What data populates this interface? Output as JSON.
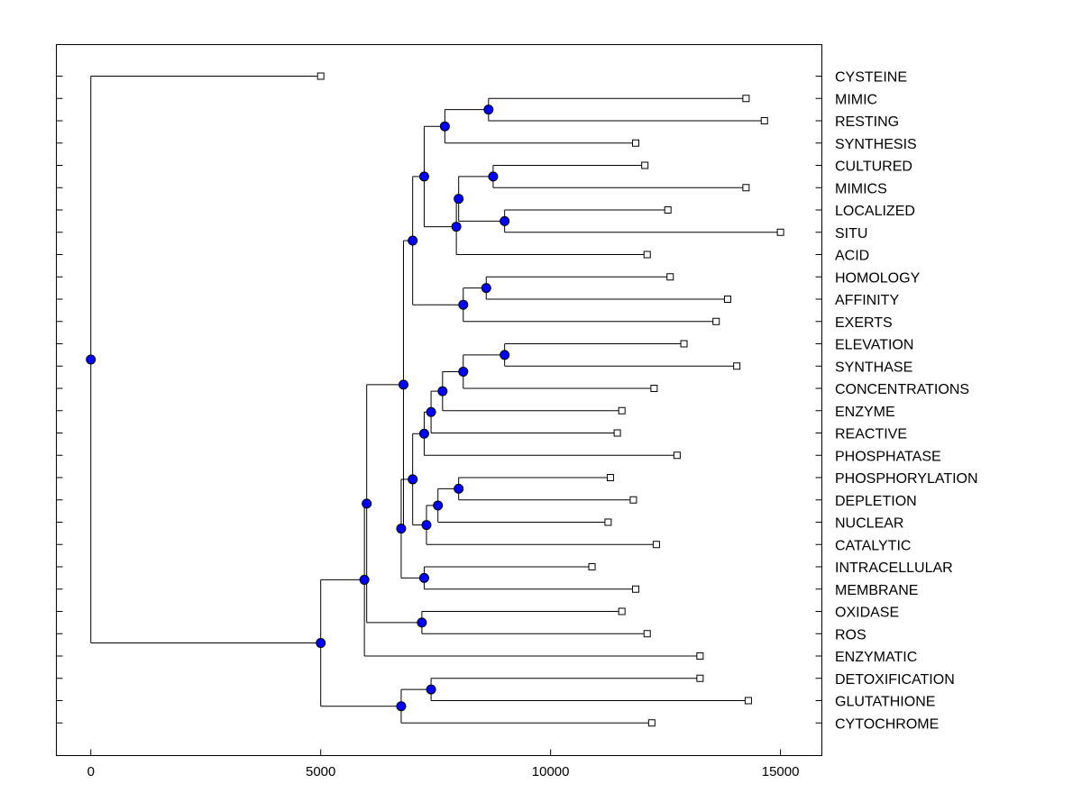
{
  "chart_data": {
    "type": "dendrogram",
    "orientation": "horizontal",
    "xlim": [
      -750,
      15900
    ],
    "xticks": [
      "0",
      "5000",
      "10000",
      "15000"
    ],
    "xtick_values": [
      0,
      5000,
      10000,
      15000
    ],
    "leaves": [
      {
        "label": "CYSTEINE",
        "x": 5000
      },
      {
        "label": "MIMIC",
        "x": 14250
      },
      {
        "label": "RESTING",
        "x": 14650
      },
      {
        "label": "SYNTHESIS",
        "x": 11850
      },
      {
        "label": "CULTURED",
        "x": 12050
      },
      {
        "label": "MIMICS",
        "x": 14250
      },
      {
        "label": "LOCALIZED",
        "x": 12550
      },
      {
        "label": "SITU",
        "x": 15000
      },
      {
        "label": "ACID",
        "x": 12100
      },
      {
        "label": "HOMOLOGY",
        "x": 12600
      },
      {
        "label": "AFFINITY",
        "x": 13850
      },
      {
        "label": "EXERTS",
        "x": 13600
      },
      {
        "label": "ELEVATION",
        "x": 12900
      },
      {
        "label": "SYNTHASE",
        "x": 14050
      },
      {
        "label": "CONCENTRATIONS",
        "x": 12250
      },
      {
        "label": "ENZYME",
        "x": 11550
      },
      {
        "label": "REACTIVE",
        "x": 11450
      },
      {
        "label": "PHOSPHATASE",
        "x": 12750
      },
      {
        "label": "PHOSPHORYLATION",
        "x": 11300
      },
      {
        "label": "DEPLETION",
        "x": 11800
      },
      {
        "label": "NUCLEAR",
        "x": 11250
      },
      {
        "label": "CATALYTIC",
        "x": 12300
      },
      {
        "label": "INTRACELLULAR",
        "x": 10900
      },
      {
        "label": "MEMBRANE",
        "x": 11850
      },
      {
        "label": "OXIDASE",
        "x": 11550
      },
      {
        "label": "ROS",
        "x": 12100
      },
      {
        "label": "ENZYMATIC",
        "x": 13250
      },
      {
        "label": "DETOXIFICATION",
        "x": 13250
      },
      {
        "label": "GLUTATHIONE",
        "x": 14300
      },
      {
        "label": "CYTOCHROME",
        "x": 12200
      }
    ],
    "merges": [
      {
        "id": "n1",
        "x": 8650,
        "children": [
          "MIMIC",
          "RESTING"
        ]
      },
      {
        "id": "n2",
        "x": 7700,
        "children": [
          "n1",
          "SYNTHESIS"
        ]
      },
      {
        "id": "n3",
        "x": 8750,
        "children": [
          "CULTURED",
          "MIMICS"
        ]
      },
      {
        "id": "n4",
        "x": 9000,
        "children": [
          "LOCALIZED",
          "SITU"
        ]
      },
      {
        "id": "n5",
        "x": 8000,
        "children": [
          "n3",
          "n4"
        ]
      },
      {
        "id": "n6",
        "x": 7950,
        "children": [
          "n5",
          "ACID"
        ]
      },
      {
        "id": "n7",
        "x": 7250,
        "children": [
          "n2",
          "n6"
        ]
      },
      {
        "id": "n8",
        "x": 8600,
        "children": [
          "HOMOLOGY",
          "AFFINITY"
        ]
      },
      {
        "id": "n9",
        "x": 8100,
        "children": [
          "n8",
          "EXERTS"
        ]
      },
      {
        "id": "n10",
        "x": 7000,
        "children": [
          "n7",
          "n9"
        ]
      },
      {
        "id": "n11",
        "x": 9000,
        "children": [
          "ELEVATION",
          "SYNTHASE"
        ]
      },
      {
        "id": "n12",
        "x": 8100,
        "children": [
          "n11",
          "CONCENTRATIONS"
        ]
      },
      {
        "id": "n13",
        "x": 7650,
        "children": [
          "n12",
          "ENZYME"
        ]
      },
      {
        "id": "n14",
        "x": 7400,
        "children": [
          "n13",
          "REACTIVE"
        ]
      },
      {
        "id": "n15",
        "x": 7250,
        "children": [
          "n14",
          "PHOSPHATASE"
        ]
      },
      {
        "id": "n16",
        "x": 8000,
        "children": [
          "PHOSPHORYLATION",
          "DEPLETION"
        ]
      },
      {
        "id": "n17",
        "x": 7550,
        "children": [
          "n16",
          "NUCLEAR"
        ]
      },
      {
        "id": "n18",
        "x": 7300,
        "children": [
          "n17",
          "CATALYTIC"
        ]
      },
      {
        "id": "n19",
        "x": 7000,
        "children": [
          "n15",
          "n18"
        ]
      },
      {
        "id": "n20",
        "x": 7250,
        "children": [
          "INTRACELLULAR",
          "MEMBRANE"
        ]
      },
      {
        "id": "n21",
        "x": 6750,
        "children": [
          "n19",
          "n20"
        ]
      },
      {
        "id": "n22",
        "x": 6800,
        "children": [
          "n10",
          "n21"
        ]
      },
      {
        "id": "n23",
        "x": 7200,
        "children": [
          "OXIDASE",
          "ROS"
        ]
      },
      {
        "id": "n24",
        "x": 6000,
        "children": [
          "n22",
          "n23"
        ]
      },
      {
        "id": "n25",
        "x": 5950,
        "children": [
          "n24",
          "ENZYMATIC"
        ]
      },
      {
        "id": "n26",
        "x": 7400,
        "children": [
          "DETOXIFICATION",
          "GLUTATHIONE"
        ]
      },
      {
        "id": "n27",
        "x": 6750,
        "children": [
          "n26",
          "CYTOCHROME"
        ]
      },
      {
        "id": "n28",
        "x": 5000,
        "children": [
          "n25",
          "n27"
        ]
      },
      {
        "id": "root",
        "x": 0,
        "children": [
          "CYSTEINE",
          "n28"
        ]
      }
    ]
  }
}
